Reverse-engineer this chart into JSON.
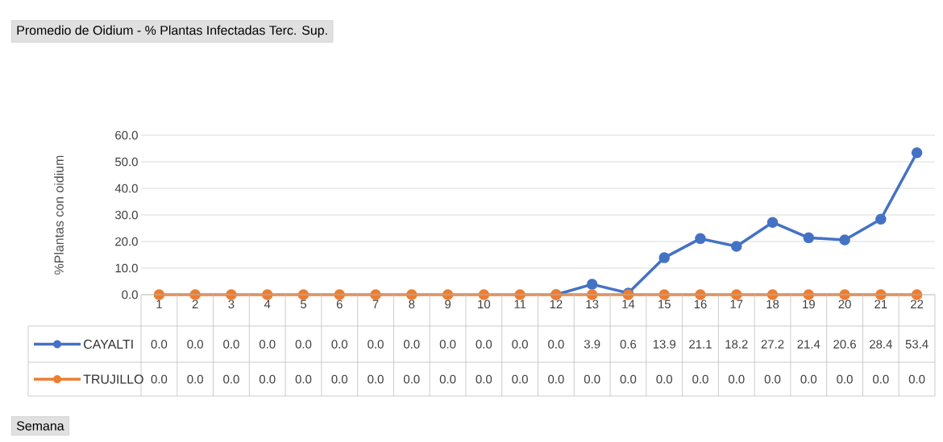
{
  "chart_data": {
    "type": "line",
    "title": "Promedio de Oidium - % Plantas Infectadas Terc. Sup.",
    "annotations": [
      "Semana"
    ],
    "ylabel": "%Plantas con oidium",
    "categories": [
      "1",
      "2",
      "3",
      "4",
      "5",
      "6",
      "7",
      "8",
      "9",
      "10",
      "11",
      "12",
      "13",
      "14",
      "15",
      "16",
      "17",
      "18",
      "19",
      "20",
      "21",
      "22"
    ],
    "series": [
      {
        "name": "CAYALTI",
        "color": "#4472c4",
        "values": [
          null,
          null,
          null,
          null,
          null,
          null,
          null,
          null,
          null,
          null,
          null,
          0.0,
          3.9,
          0.6,
          13.9,
          21.1,
          18.2,
          27.2,
          21.4,
          20.6,
          28.4,
          53.4
        ],
        "value_labels": [
          "0.0",
          "0.0",
          "0.0",
          "0.0",
          "0.0",
          "0.0",
          "0.0",
          "0.0",
          "0.0",
          "0.0",
          "0.0",
          "0.0",
          "3.9",
          "0.6",
          "13.9",
          "21.1",
          "18.2",
          "27.2",
          "21.4",
          "20.6",
          "28.4",
          "53.4"
        ]
      },
      {
        "name": "TRUJILLO",
        "color": "#ed7d31",
        "values": [
          0.0,
          0.0,
          0.0,
          0.0,
          0.0,
          0.0,
          0.0,
          0.0,
          0.0,
          0.0,
          0.0,
          0.0,
          0.0,
          0.0,
          0.0,
          0.0,
          0.0,
          0.0,
          0.0,
          0.0,
          0.0,
          0.0
        ],
        "value_labels": [
          "0.0",
          "0.0",
          "0.0",
          "0.0",
          "0.0",
          "0.0",
          "0.0",
          "0.0",
          "0.0",
          "0.0",
          "0.0",
          "0.0",
          "0.0",
          "0.0",
          "0.0",
          "0.0",
          "0.0",
          "0.0",
          "0.0",
          "0.0",
          "0.0",
          "0.0"
        ]
      }
    ],
    "ylim": [
      0,
      60
    ],
    "yticks": [
      {
        "value": 0,
        "label": "0.0"
      },
      {
        "value": 10,
        "label": "10.0"
      },
      {
        "value": 20,
        "label": "20.0"
      },
      {
        "value": 30,
        "label": "30.0"
      },
      {
        "value": 40,
        "label": "40.0"
      },
      {
        "value": 50,
        "label": "50.0"
      },
      {
        "value": 60,
        "label": "60.0"
      }
    ],
    "grid": "y",
    "legend": "bottom",
    "marker": "circle",
    "line_style": "solid"
  }
}
